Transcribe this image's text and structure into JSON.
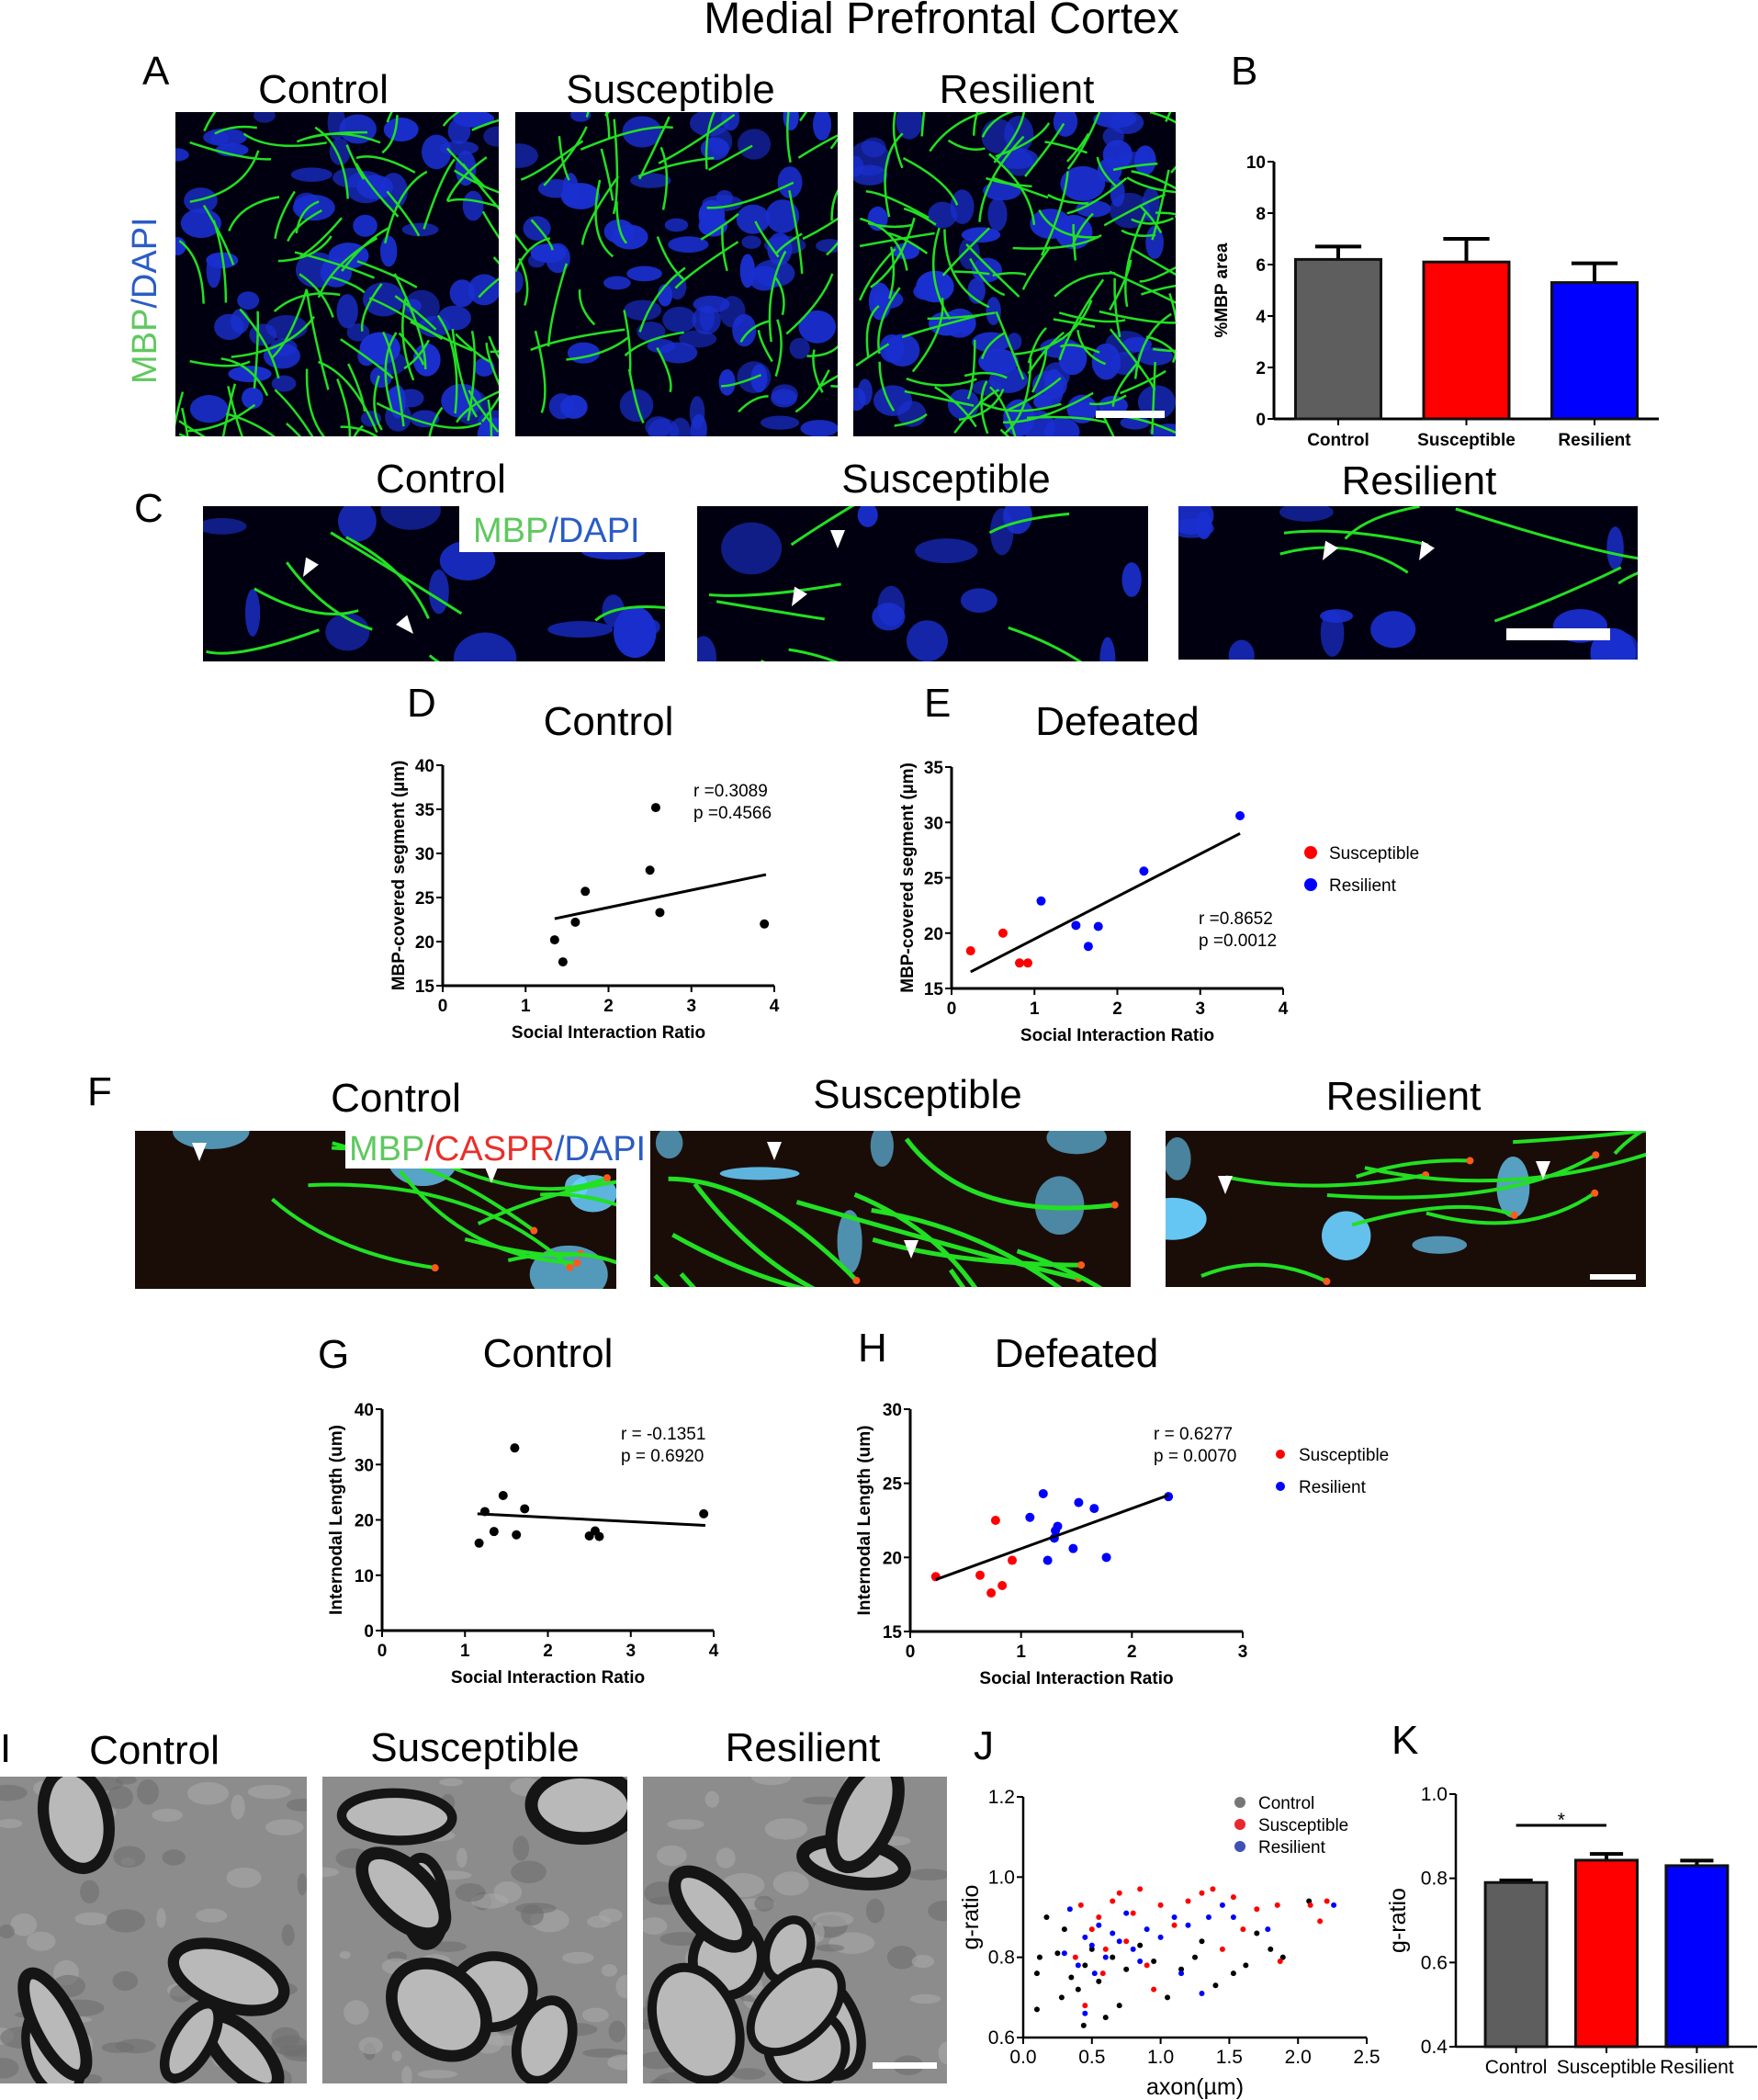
{
  "figure": {
    "title": "Medial Prefrontal Cortex"
  },
  "colors": {
    "control": "#5e5e5e",
    "susceptible": "#ff0000",
    "resilient": "#0000ff",
    "mbp": "#5fc85f",
    "dapi": "#2b5cc4",
    "caspr": "#e8302a"
  },
  "panel_a": {
    "label": "A",
    "titles": [
      "Control",
      "Susceptible",
      "Resilient"
    ],
    "stain": {
      "mbp": "MBP",
      "sep": "/",
      "dapi": "DAPI"
    }
  },
  "panel_b": {
    "label": "B"
  },
  "panel_c": {
    "label": "C",
    "titles": [
      "Control",
      "Susceptible",
      "Resilient"
    ],
    "stain": {
      "mbp": "MBP",
      "sep": "/",
      "dapi": "DAPI"
    }
  },
  "panel_d": {
    "label": "D"
  },
  "panel_e": {
    "label": "E"
  },
  "panel_f": {
    "label": "F",
    "titles": [
      "Control",
      "Susceptible",
      "Resilient"
    ],
    "stain": {
      "mbp": "MBP",
      "sep1": "/",
      "caspr": "CASPR",
      "sep2": "/",
      "dapi": "DAPI"
    }
  },
  "panel_g": {
    "label": "G"
  },
  "panel_h": {
    "label": "H"
  },
  "panel_i": {
    "label": "I",
    "titles": [
      "Control",
      "Susceptible",
      "Resilient"
    ]
  },
  "panel_j": {
    "label": "J"
  },
  "panel_k": {
    "label": "K"
  },
  "chart_data": [
    {
      "id": "B",
      "type": "bar",
      "title": "",
      "categories": [
        "Control",
        "Susceptible",
        "Resilient"
      ],
      "values": [
        6.2,
        6.1,
        5.3
      ],
      "errors": [
        0.5,
        0.9,
        0.75
      ],
      "colors": [
        "#5e5e5e",
        "#ff0000",
        "#0000ff"
      ],
      "xlabel": "",
      "ylabel": "%MBP area",
      "ylim": [
        0,
        10
      ],
      "yticks": [
        "0",
        "2",
        "4",
        "6",
        "8",
        "10"
      ],
      "grid": false
    },
    {
      "id": "D",
      "type": "scatter",
      "title": "Control",
      "xlabel": "Social Interaction Ratio",
      "ylabel": "MBP-covered segment (µm)",
      "xlim": [
        0,
        4
      ],
      "ylim": [
        15,
        40
      ],
      "xticks": [
        "0",
        "1",
        "2",
        "3",
        "4"
      ],
      "yticks": [
        "15",
        "20",
        "25",
        "30",
        "35",
        "40"
      ],
      "grid": false,
      "series": [
        {
          "color": "#000000",
          "points": [
            [
              1.35,
              20.2
            ],
            [
              1.45,
              17.7
            ],
            [
              1.6,
              22.2
            ],
            [
              1.72,
              25.7
            ],
            [
              2.5,
              28.1
            ],
            [
              2.57,
              35.2
            ],
            [
              2.62,
              23.3
            ],
            [
              3.88,
              22.0
            ]
          ]
        }
      ],
      "fit": [
        [
          1.35,
          22.6
        ],
        [
          3.9,
          27.6
        ]
      ],
      "annotations": [
        "r =0.3089",
        "p =0.4566"
      ]
    },
    {
      "id": "E",
      "type": "scatter",
      "title": "Defeated",
      "xlabel": "Social Interaction Ratio",
      "ylabel": "MBP-covered segment (µm)",
      "xlim": [
        0,
        4
      ],
      "ylim": [
        15,
        35
      ],
      "xticks": [
        "0",
        "1",
        "2",
        "3",
        "4"
      ],
      "yticks": [
        "15",
        "20",
        "25",
        "30",
        "35"
      ],
      "grid": false,
      "legend": "right",
      "series": [
        {
          "name": "Susceptible",
          "color": "#ff0000",
          "points": [
            [
              0.23,
              18.4
            ],
            [
              0.62,
              20.0
            ],
            [
              0.82,
              17.3
            ],
            [
              0.92,
              17.3
            ]
          ]
        },
        {
          "name": "Resilient",
          "color": "#0000ff",
          "points": [
            [
              1.08,
              22.9
            ],
            [
              1.5,
              20.7
            ],
            [
              1.65,
              18.8
            ],
            [
              1.77,
              20.6
            ],
            [
              2.32,
              25.6
            ],
            [
              3.48,
              30.6
            ]
          ]
        }
      ],
      "fit": [
        [
          0.23,
          16.5
        ],
        [
          3.48,
          29.0
        ]
      ],
      "annotations": [
        "r =0.8652",
        "p =0.0012"
      ]
    },
    {
      "id": "G",
      "type": "scatter",
      "title": "Control",
      "xlabel": "Social Interaction Ratio",
      "ylabel": "Internodal Length (um)",
      "xlim": [
        0,
        4
      ],
      "ylim": [
        0,
        40
      ],
      "xticks": [
        "0",
        "1",
        "2",
        "3",
        "4"
      ],
      "yticks": [
        "0",
        "10",
        "20",
        "30",
        "40"
      ],
      "grid": false,
      "series": [
        {
          "color": "#000000",
          "points": [
            [
              1.17,
              15.8
            ],
            [
              1.24,
              21.5
            ],
            [
              1.35,
              17.9
            ],
            [
              1.46,
              24.4
            ],
            [
              1.6,
              33.0
            ],
            [
              1.62,
              17.3
            ],
            [
              1.72,
              22.0
            ],
            [
              2.5,
              17.1
            ],
            [
              2.57,
              18.0
            ],
            [
              2.62,
              17.0
            ],
            [
              3.88,
              21.1
            ]
          ]
        }
      ],
      "fit": [
        [
          1.15,
          21.1
        ],
        [
          3.9,
          19.0
        ]
      ],
      "annotations": [
        "r = -0.1351",
        "p = 0.6920"
      ]
    },
    {
      "id": "H",
      "type": "scatter",
      "title": "Defeated",
      "xlabel": "Social Interaction Ratio",
      "ylabel": "Internodal Length (um)",
      "xlim": [
        0,
        3
      ],
      "ylim": [
        15,
        30
      ],
      "xticks": [
        "0",
        "1",
        "2",
        "3"
      ],
      "yticks": [
        "15",
        "20",
        "25",
        "30"
      ],
      "grid": false,
      "legend": "right",
      "series": [
        {
          "name": "Susceptible",
          "color": "#ff0000",
          "points": [
            [
              0.23,
              18.7
            ],
            [
              0.63,
              18.8
            ],
            [
              0.73,
              17.6
            ],
            [
              0.77,
              22.5
            ],
            [
              0.83,
              18.1
            ],
            [
              0.92,
              19.8
            ]
          ]
        },
        {
          "name": "Resilient",
          "color": "#0000ff",
          "points": [
            [
              1.08,
              22.7
            ],
            [
              1.2,
              24.3
            ],
            [
              1.24,
              19.8
            ],
            [
              1.3,
              21.3
            ],
            [
              1.31,
              21.8
            ],
            [
              1.33,
              22.1
            ],
            [
              1.47,
              20.6
            ],
            [
              1.52,
              23.7
            ],
            [
              1.66,
              23.3
            ],
            [
              1.77,
              20.0
            ],
            [
              2.33,
              24.1
            ]
          ]
        }
      ],
      "fit": [
        [
          0.23,
          18.5
        ],
        [
          2.33,
          24.2
        ]
      ],
      "annotations": [
        "r = 0.6277",
        "p = 0.0070"
      ]
    },
    {
      "id": "J",
      "type": "scatter",
      "title": "",
      "xlabel": "axon(µm)",
      "ylabel": "g-ratio",
      "xlim": [
        0,
        2.5
      ],
      "ylim": [
        0.6,
        1.2
      ],
      "xticks": [
        "0.0",
        "0.5",
        "1.0",
        "1.5",
        "2.0",
        "2.5"
      ],
      "yticks": [
        "0.6",
        "0.8",
        "1.0",
        "1.2"
      ],
      "grid": false,
      "legend": "top-right",
      "series": [
        {
          "name": "Control",
          "color": "#000000",
          "legend_color": "#777777",
          "points": [
            [
              0.1,
              0.76
            ],
            [
              0.1,
              0.67
            ],
            [
              0.12,
              0.8
            ],
            [
              0.17,
              0.9
            ],
            [
              0.25,
              0.81
            ],
            [
              0.28,
              0.7
            ],
            [
              0.3,
              0.87
            ],
            [
              0.35,
              0.75
            ],
            [
              0.4,
              0.72
            ],
            [
              0.44,
              0.63
            ],
            [
              0.45,
              0.78
            ],
            [
              0.5,
              0.82
            ],
            [
              0.55,
              0.74
            ],
            [
              0.6,
              0.65
            ],
            [
              0.65,
              0.8
            ],
            [
              0.7,
              0.68
            ],
            [
              0.75,
              0.77
            ],
            [
              0.85,
              0.83
            ],
            [
              0.95,
              0.79
            ],
            [
              1.05,
              0.7
            ],
            [
              1.15,
              0.77
            ],
            [
              1.25,
              0.8
            ],
            [
              1.3,
              0.84
            ],
            [
              1.4,
              0.73
            ],
            [
              1.53,
              0.76
            ],
            [
              1.62,
              0.78
            ],
            [
              1.7,
              0.86
            ],
            [
              1.8,
              0.82
            ],
            [
              1.89,
              0.8
            ],
            [
              2.08,
              0.94
            ]
          ]
        },
        {
          "name": "Susceptible",
          "color": "#ff0000",
          "legend_color": "#e8282c",
          "points": [
            [
              0.38,
              0.8
            ],
            [
              0.42,
              0.93
            ],
            [
              0.5,
              0.87
            ],
            [
              0.55,
              0.9
            ],
            [
              0.6,
              0.82
            ],
            [
              0.65,
              0.94
            ],
            [
              0.7,
              0.96
            ],
            [
              0.75,
              0.84
            ],
            [
              0.8,
              0.91
            ],
            [
              0.85,
              0.97
            ],
            [
              0.9,
              0.78
            ],
            [
              0.95,
              0.72
            ],
            [
              1.0,
              0.93
            ],
            [
              1.1,
              0.88
            ],
            [
              1.2,
              0.94
            ],
            [
              1.3,
              0.96
            ],
            [
              1.38,
              0.97
            ],
            [
              1.45,
              0.82
            ],
            [
              1.53,
              0.95
            ],
            [
              1.6,
              0.87
            ],
            [
              1.7,
              0.92
            ],
            [
              1.85,
              0.93
            ],
            [
              1.87,
              0.79
            ],
            [
              2.09,
              0.93
            ],
            [
              2.16,
              0.89
            ],
            [
              2.21,
              0.94
            ],
            [
              0.45,
              0.68
            ],
            [
              0.58,
              0.76
            ]
          ]
        },
        {
          "name": "Resilient",
          "color": "#0000ff",
          "legend_color": "#3f51b5",
          "points": [
            [
              0.3,
              0.81
            ],
            [
              0.34,
              0.92
            ],
            [
              0.4,
              0.78
            ],
            [
              0.45,
              0.85
            ],
            [
              0.5,
              0.83
            ],
            [
              0.52,
              0.76
            ],
            [
              0.55,
              0.88
            ],
            [
              0.6,
              0.8
            ],
            [
              0.65,
              0.86
            ],
            [
              0.7,
              0.84
            ],
            [
              0.75,
              0.91
            ],
            [
              0.8,
              0.82
            ],
            [
              0.85,
              0.79
            ],
            [
              0.9,
              0.87
            ],
            [
              1.0,
              0.85
            ],
            [
              1.1,
              0.9
            ],
            [
              1.15,
              0.76
            ],
            [
              1.2,
              0.88
            ],
            [
              1.3,
              0.71
            ],
            [
              1.35,
              0.9
            ],
            [
              1.45,
              0.93
            ],
            [
              1.53,
              0.9
            ],
            [
              1.78,
              0.87
            ],
            [
              2.26,
              0.93
            ],
            [
              0.45,
              0.66
            ]
          ]
        }
      ]
    },
    {
      "id": "K",
      "type": "bar",
      "title": "",
      "categories": [
        "Control",
        "Susceptible",
        "Resilient"
      ],
      "values": [
        0.79,
        0.843,
        0.83
      ],
      "errors": [
        0.005,
        0.015,
        0.012
      ],
      "colors": [
        "#5e5e5e",
        "#ff0000",
        "#0000ff"
      ],
      "xlabel": "",
      "ylabel": "g-ratio",
      "ylim": [
        0.4,
        1.0
      ],
      "yticks": [
        "0.4",
        "0.6",
        "0.8",
        "1.0"
      ],
      "grid": false,
      "significance": {
        "between": [
          "Control",
          "Susceptible"
        ],
        "label": "*"
      }
    }
  ]
}
